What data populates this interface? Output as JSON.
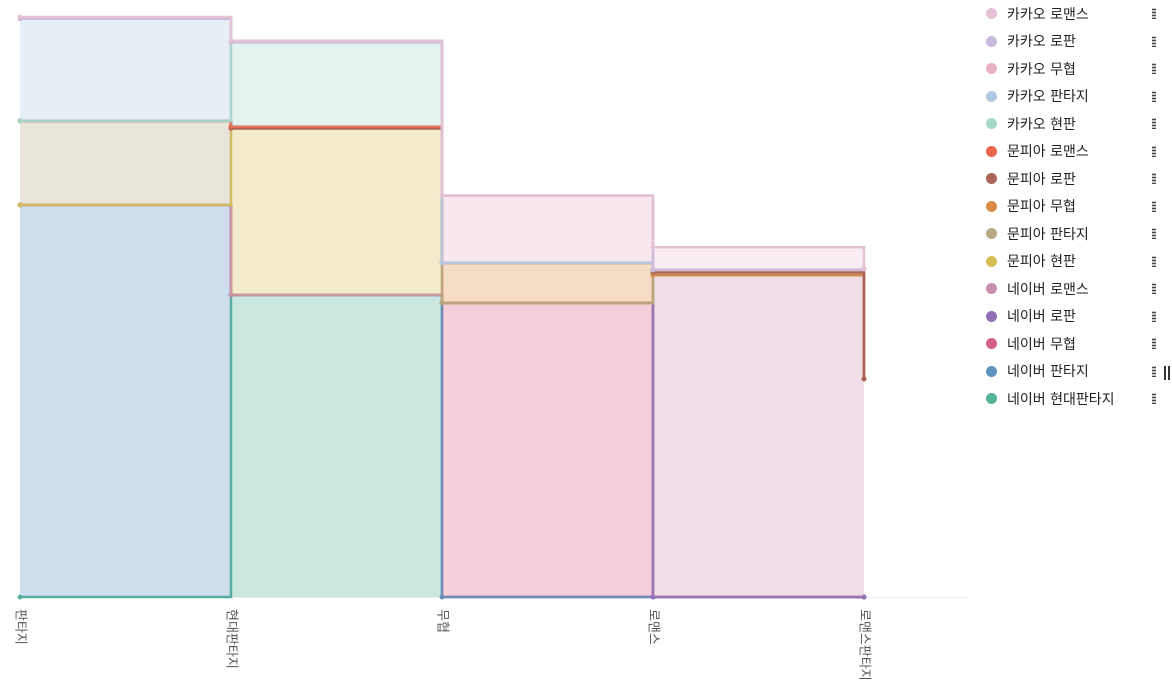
{
  "chart_data": {
    "type": "area",
    "stacked": true,
    "step": true,
    "categories": [
      "판타지",
      "현대판타지",
      "무협",
      "로맨스",
      "로맨스판타지"
    ],
    "ylim": [
      0,
      100
    ],
    "grid": false,
    "legend_placement": "right",
    "series": [
      {
        "name": "네이버 현대판타지",
        "color": "#54b399",
        "values": [
          0,
          52.1,
          0,
          0,
          0
        ]
      },
      {
        "name": "네이버 판타지",
        "color": "#6092c0",
        "values": [
          67.6,
          0,
          0,
          0,
          0
        ]
      },
      {
        "name": "네이버 무협",
        "color": "#d36086",
        "values": [
          0,
          0,
          50.7,
          0,
          0
        ]
      },
      {
        "name": "네이버 로판",
        "color": "#9170b8",
        "values": [
          0,
          0,
          0,
          0,
          0
        ]
      },
      {
        "name": "네이버 로맨스",
        "color": "#ca8eae",
        "values": [
          0,
          0,
          0,
          55.5,
          37.6
        ]
      },
      {
        "name": "문피아 현판",
        "color": "#d6bf57",
        "values": [
          0,
          28.7,
          0,
          0,
          0
        ]
      },
      {
        "name": "문피아 판타지",
        "color": "#b9a888",
        "values": [
          14.5,
          0,
          0,
          0,
          0
        ]
      },
      {
        "name": "문피아 무협",
        "color": "#da8b45",
        "values": [
          0,
          0,
          6.9,
          0,
          0
        ]
      },
      {
        "name": "문피아 로판",
        "color": "#aa6556",
        "values": [
          0,
          0,
          0,
          0.5,
          0
        ]
      },
      {
        "name": "문피아 로맨스",
        "color": "#e7664c",
        "values": [
          0,
          0.3,
          0,
          0.4,
          19.0
        ]
      },
      {
        "name": "카카오 현판",
        "color": "#a6d8c9",
        "values": [
          0,
          14.6,
          0,
          0,
          0
        ]
      },
      {
        "name": "카카오 판타지",
        "color": "#b0c9e0",
        "values": [
          17.6,
          0,
          0,
          0,
          0
        ]
      },
      {
        "name": "카카오 무협",
        "color": "#e8b0c3",
        "values": [
          0,
          0,
          11.6,
          0,
          0
        ]
      },
      {
        "name": "카카오 로판",
        "color": "#c8b8dc",
        "values": [
          0,
          0,
          0,
          0,
          0
        ]
      },
      {
        "name": "카카오 로맨스",
        "color": "#e4c2d3",
        "values": [
          0.3,
          0.2,
          0,
          3.9,
          0
        ]
      }
    ]
  },
  "legend": {
    "items": [
      {
        "label": "카카오 로맨스",
        "color": "#e4c2d3"
      },
      {
        "label": "카카오 로판",
        "color": "#c8b8dc"
      },
      {
        "label": "카카오 무협",
        "color": "#e8b0c3"
      },
      {
        "label": "카카오 판타지",
        "color": "#b0c9e0"
      },
      {
        "label": "카카오 현판",
        "color": "#a6d8c9"
      },
      {
        "label": "문피아 로맨스",
        "color": "#e7664c"
      },
      {
        "label": "문피아 로판",
        "color": "#aa6556"
      },
      {
        "label": "문피아 무협",
        "color": "#da8b45"
      },
      {
        "label": "문피아 판타지",
        "color": "#b9a888"
      },
      {
        "label": "문피아 현판",
        "color": "#d6bf57"
      },
      {
        "label": "네이버 로맨스",
        "color": "#ca8eae"
      },
      {
        "label": "네이버 로판",
        "color": "#9170b8"
      },
      {
        "label": "네이버 무협",
        "color": "#d36086"
      },
      {
        "label": "네이버 판타지",
        "color": "#6092c0"
      },
      {
        "label": "네이버 현대판타지",
        "color": "#54b399"
      }
    ]
  }
}
